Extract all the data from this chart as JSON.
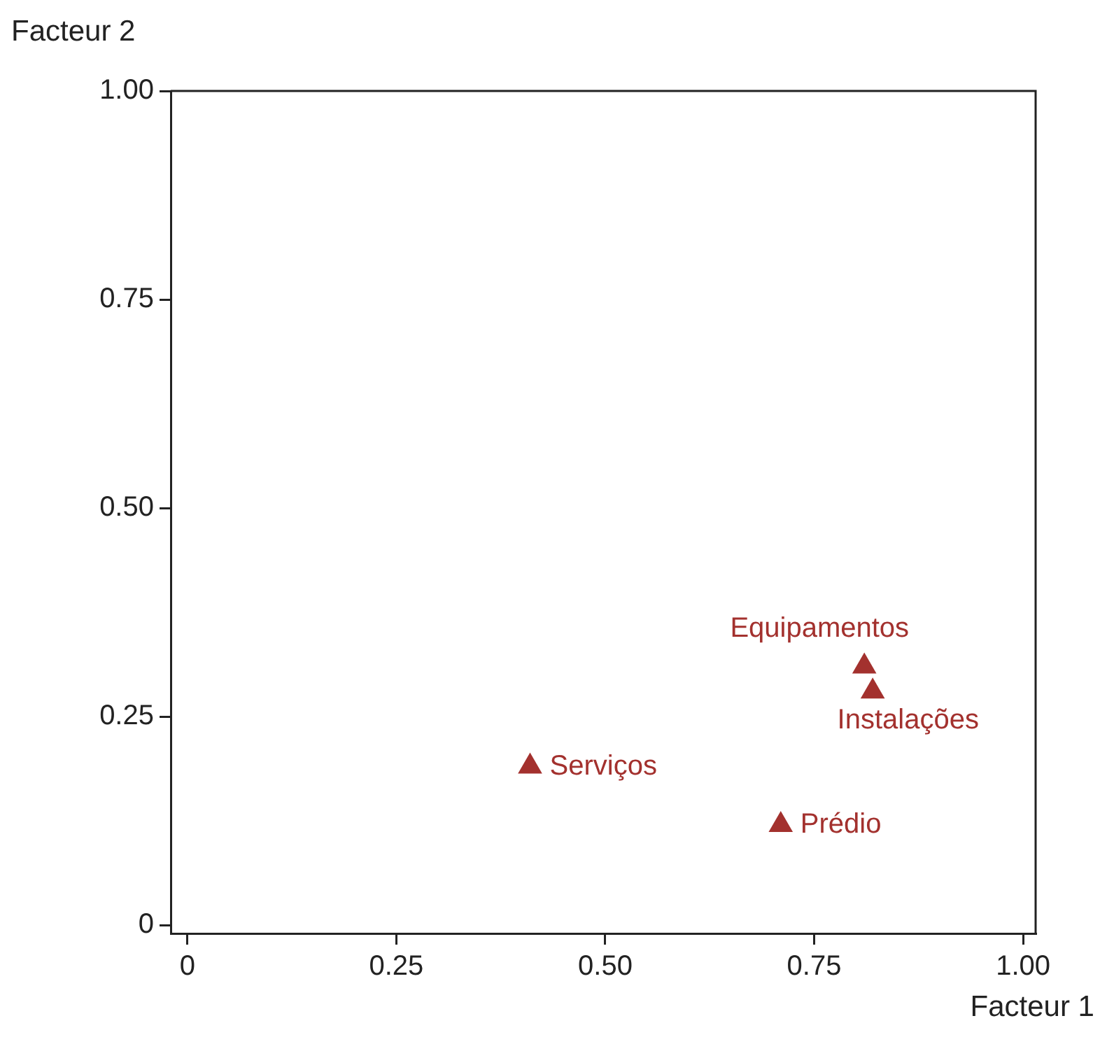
{
  "chart_data": {
    "type": "scatter",
    "xlabel": "Facteur 1",
    "ylabel": "Facteur 2",
    "x": [
      0.41,
      0.71,
      0.81,
      0.82
    ],
    "series": [
      {
        "color": "#a3312e",
        "values": [
          0.19,
          0.12,
          0.31,
          0.28
        ]
      }
    ],
    "marker": "triangle",
    "xlim": [
      -0.02,
      1.015
    ],
    "ylim": [
      -0.01,
      1.0
    ],
    "xticks": [
      0,
      0.25,
      {
        "value": 0.5,
        "label": "0.50"
      },
      0.75,
      {
        "value": 1,
        "label": "1.00"
      }
    ],
    "yticks": [
      0,
      0.25,
      {
        "value": 0.5,
        "label": "0.50"
      },
      0.75,
      {
        "value": 1,
        "label": "1.00"
      }
    ],
    "annotations": [
      {
        "text": "Serviços",
        "x": 0.41,
        "y": 0.19
      },
      {
        "text": "Prédio",
        "x": 0.71,
        "y": 0.12
      },
      {
        "text": "Equipamentos",
        "x": 0.81,
        "y": 0.31
      },
      {
        "text": "Instalações",
        "x": 0.82,
        "y": 0.28
      }
    ]
  }
}
